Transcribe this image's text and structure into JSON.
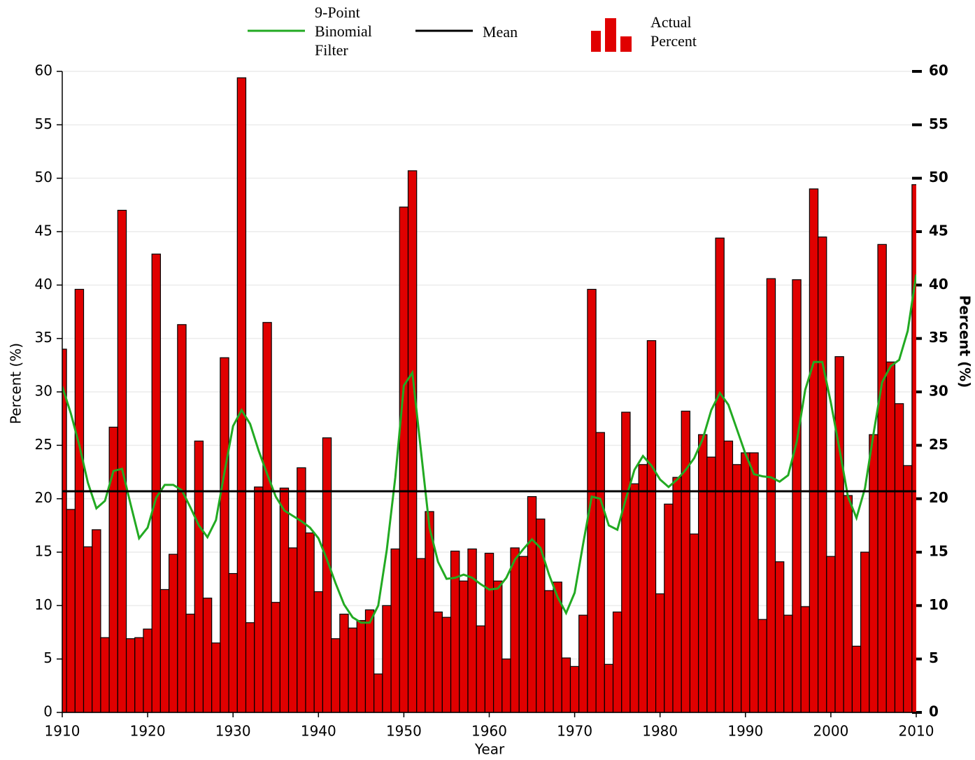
{
  "chart_data": {
    "type": "bar",
    "x_label": "Year",
    "y_label": "Percent (%)",
    "y2_label": "Percent (%)",
    "xlim": [
      1910,
      2010
    ],
    "xticks": [
      1910,
      1920,
      1930,
      1940,
      1950,
      1960,
      1970,
      1980,
      1990,
      2000,
      2010
    ],
    "ylim": [
      0,
      60
    ],
    "yticks": [
      0,
      5,
      10,
      15,
      20,
      25,
      30,
      35,
      40,
      45,
      50,
      55,
      60
    ],
    "y2lim": [
      0,
      60
    ],
    "y2ticks": [
      0,
      5,
      10,
      15,
      20,
      25,
      30,
      35,
      40,
      45,
      50,
      55,
      60
    ],
    "grid": true,
    "x": [
      1910,
      1911,
      1912,
      1913,
      1914,
      1915,
      1916,
      1917,
      1918,
      1919,
      1920,
      1921,
      1922,
      1923,
      1924,
      1925,
      1926,
      1927,
      1928,
      1929,
      1930,
      1931,
      1932,
      1933,
      1934,
      1935,
      1936,
      1937,
      1938,
      1939,
      1940,
      1941,
      1942,
      1943,
      1944,
      1945,
      1946,
      1947,
      1948,
      1949,
      1950,
      1951,
      1952,
      1953,
      1954,
      1955,
      1956,
      1957,
      1958,
      1959,
      1960,
      1961,
      1962,
      1963,
      1964,
      1965,
      1966,
      1967,
      1968,
      1969,
      1970,
      1971,
      1972,
      1973,
      1974,
      1975,
      1976,
      1977,
      1978,
      1979,
      1980,
      1981,
      1982,
      1983,
      1984,
      1985,
      1986,
      1987,
      1988,
      1989,
      1990,
      1991,
      1992,
      1993,
      1994,
      1995,
      1996,
      1997,
      1998,
      1999,
      2000,
      2001,
      2002,
      2003,
      2004,
      2005,
      2006,
      2007,
      2008,
      2009,
      2010
    ],
    "series": [
      {
        "name": "Actual Percent",
        "type": "bar",
        "color": "#e00000",
        "values": [
          34,
          19,
          39.6,
          15.5,
          17.1,
          7.0,
          26.7,
          47.0,
          6.9,
          7.0,
          7.8,
          42.9,
          11.5,
          14.8,
          36.3,
          9.2,
          25.4,
          10.7,
          6.5,
          33.2,
          13.0,
          59.4,
          8.4,
          21.1,
          36.5,
          10.3,
          21.0,
          15.4,
          22.9,
          16.8,
          11.3,
          25.7,
          6.9,
          9.2,
          7.9,
          8.6,
          9.6,
          3.6,
          10.0,
          15.3,
          47.3,
          50.7,
          14.4,
          18.8,
          9.4,
          8.9,
          15.1,
          12.3,
          15.3,
          8.1,
          14.9,
          12.3,
          5.0,
          15.4,
          14.6,
          20.2,
          18.1,
          11.4,
          12.2,
          5.1,
          4.3,
          9.1,
          39.6,
          26.2,
          4.5,
          9.4,
          28.1,
          21.4,
          23.2,
          34.8,
          11.1,
          19.5,
          22.0,
          28.2,
          16.7,
          26.0,
          23.9,
          44.4,
          25.4,
          23.2,
          24.3,
          24.3,
          8.7,
          40.6,
          14.1,
          9.1,
          40.5,
          9.9,
          49.0,
          44.5,
          14.6,
          33.3,
          20.3,
          6.2,
          15.0,
          26.0,
          43.8,
          32.8,
          28.9,
          23.1,
          49.4
        ]
      },
      {
        "name": "9-Point Binomial Filter",
        "type": "line",
        "color": "#22aa22",
        "values": [
          30.5,
          28,
          25,
          21.5,
          19.1,
          19.8,
          22.6,
          22.8,
          19.5,
          16.3,
          17.3,
          20.1,
          21.3,
          21.3,
          20.8,
          19.2,
          17.5,
          16.4,
          18,
          22.5,
          26.8,
          28.3,
          27,
          24.5,
          22.3,
          20.2,
          18.9,
          18.4,
          17.9,
          17.3,
          16.3,
          14.3,
          12.1,
          10.1,
          8.9,
          8.4,
          8.4,
          10,
          15.2,
          22,
          30.6,
          31.8,
          24.5,
          17.3,
          14.1,
          12.5,
          12.6,
          12.9,
          12.6,
          12,
          11.5,
          11.6,
          12.6,
          14.3,
          15.3,
          16.2,
          15.4,
          12.9,
          10.8,
          9.3,
          11.2,
          15.8,
          20.2,
          20,
          17.5,
          17.1,
          20,
          22.7,
          24,
          23.1,
          21.8,
          21.1,
          21.8,
          22.7,
          23.8,
          25.6,
          28.3,
          29.9,
          28.8,
          26.5,
          24.2,
          22.3,
          22.1,
          22,
          21.6,
          22.2,
          25.3,
          30.2,
          32.8,
          32.8,
          29,
          24.7,
          20.2,
          18.2,
          21,
          26.1,
          30.9,
          32.4,
          33,
          35.7,
          41
        ]
      }
    ],
    "mean": {
      "name": "Mean",
      "value": 20.7,
      "color": "#000000"
    }
  }
}
